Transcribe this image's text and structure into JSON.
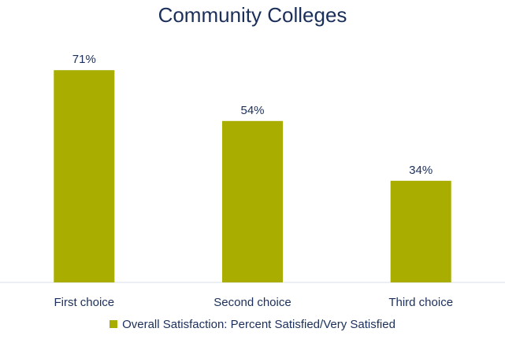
{
  "chart_data": {
    "type": "bar",
    "title": "Community Colleges",
    "categories": [
      "First choice",
      "Second choice",
      "Third choice"
    ],
    "series": [
      {
        "name": "Overall Satisfaction: Percent Satisfied/Very Satisfied",
        "values": [
          71,
          54,
          34
        ],
        "value_labels": [
          "71%",
          "54%",
          "34%"
        ],
        "color": "#a8ad00"
      }
    ],
    "ylim": [
      0,
      100
    ],
    "grid": false,
    "legend_position": "bottom"
  },
  "colors": {
    "text": "#1b2f5a",
    "axis": "#d9e2ea"
  }
}
